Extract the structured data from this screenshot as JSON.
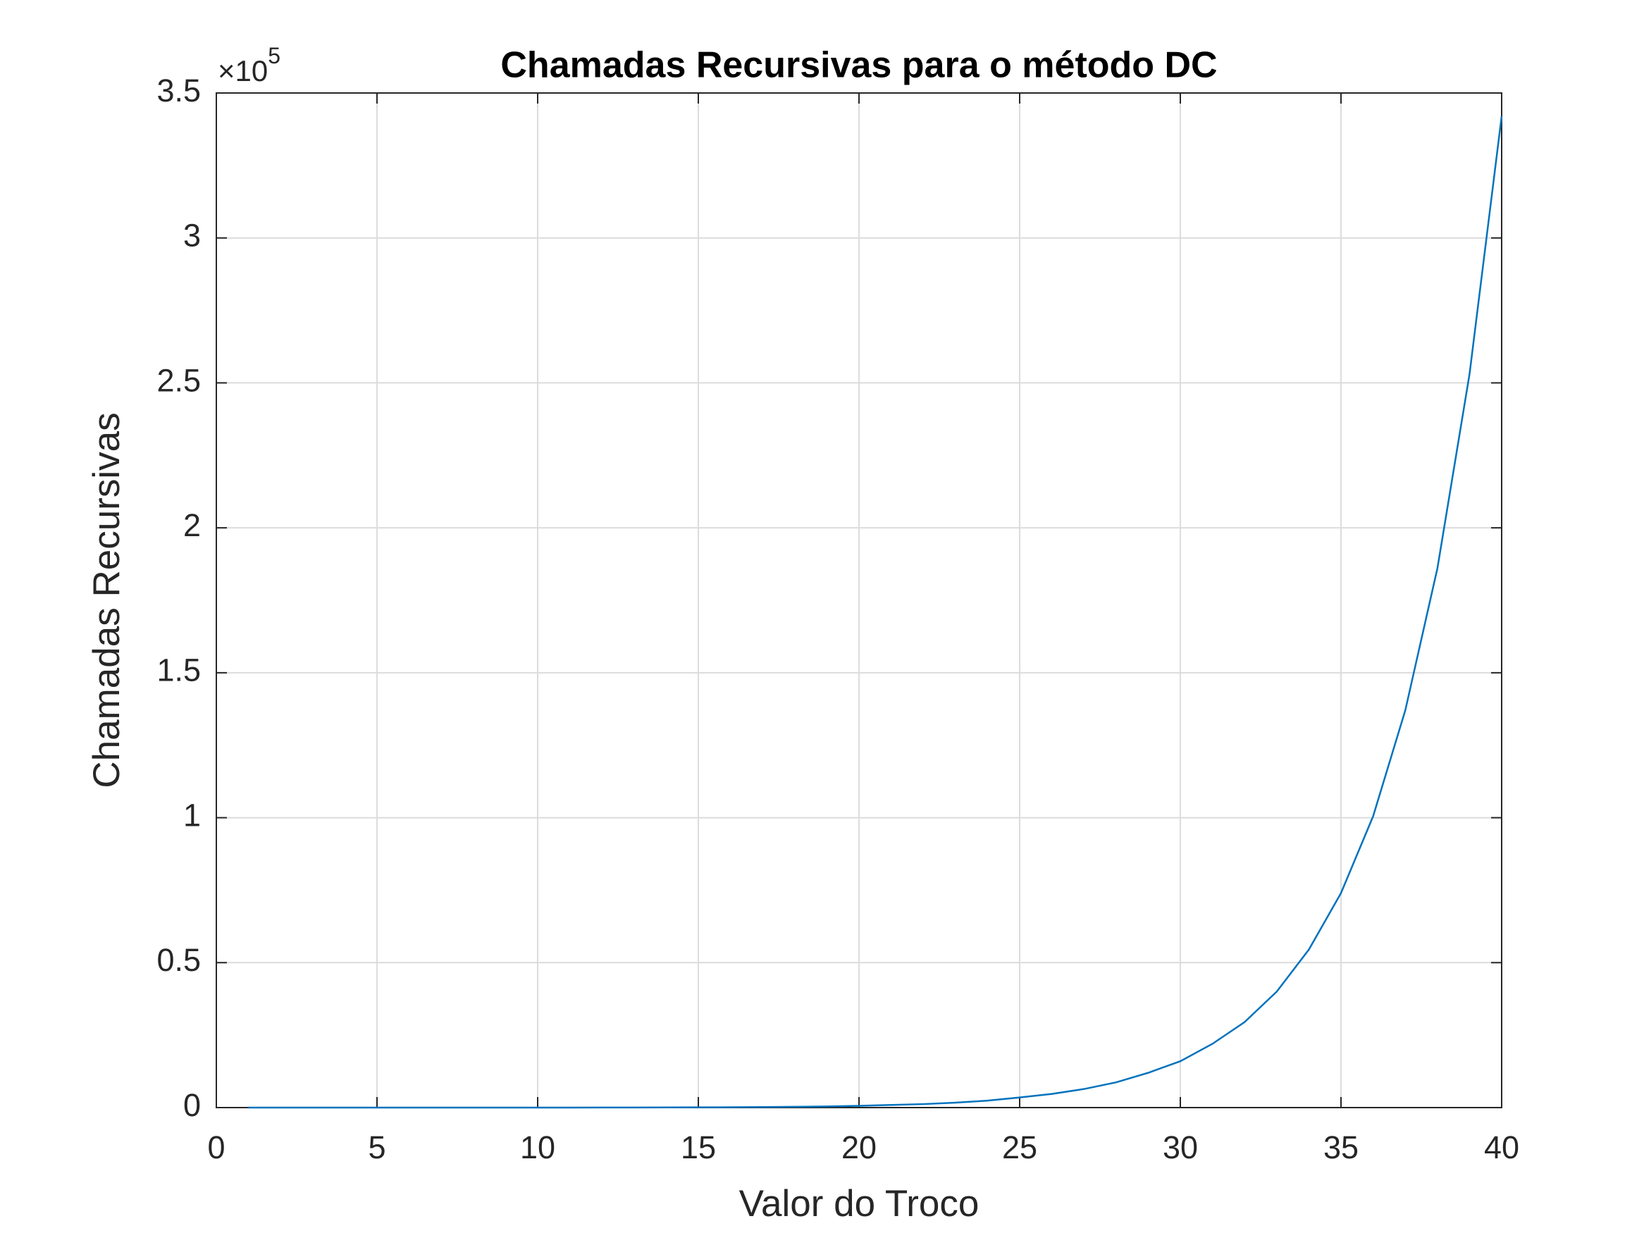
{
  "chart_data": {
    "type": "line",
    "title": "Chamadas Recursivas para o método DC",
    "x_label": "Valor do Troco",
    "y_label": "Chamadas Recursivas",
    "y_multiplier": {
      "base": "×10",
      "exponent": "5"
    },
    "x": [
      1,
      2,
      3,
      4,
      5,
      6,
      7,
      8,
      9,
      10,
      11,
      12,
      13,
      14,
      15,
      16,
      17,
      18,
      19,
      20,
      21,
      22,
      23,
      24,
      25,
      26,
      27,
      28,
      29,
      30,
      31,
      32,
      33,
      34,
      35,
      36,
      37,
      38,
      39,
      40
    ],
    "series": [
      {
        "name": "Chamadas Recursivas",
        "color": "#0072bd",
        "values": [
          0,
          0,
          0,
          0,
          0,
          0,
          0,
          0,
          0,
          0,
          0.0001,
          0.0002,
          0.0003,
          0.0005,
          0.0008,
          0.0012,
          0.0018,
          0.0027,
          0.004,
          0.006,
          0.009,
          0.012,
          0.017,
          0.024,
          0.035,
          0.047,
          0.064,
          0.087,
          0.12,
          0.16,
          0.22,
          0.295,
          0.4,
          0.545,
          0.74,
          1.005,
          1.37,
          1.86,
          2.53,
          3.42
        ]
      }
    ],
    "xlim": [
      0,
      40
    ],
    "xticks": [
      0,
      5,
      10,
      15,
      20,
      25,
      30,
      35,
      40
    ],
    "ylim": [
      0,
      3.5
    ],
    "yticks": [
      0,
      0.5,
      1,
      1.5,
      2,
      2.5,
      3,
      3.5
    ],
    "grid": true
  }
}
